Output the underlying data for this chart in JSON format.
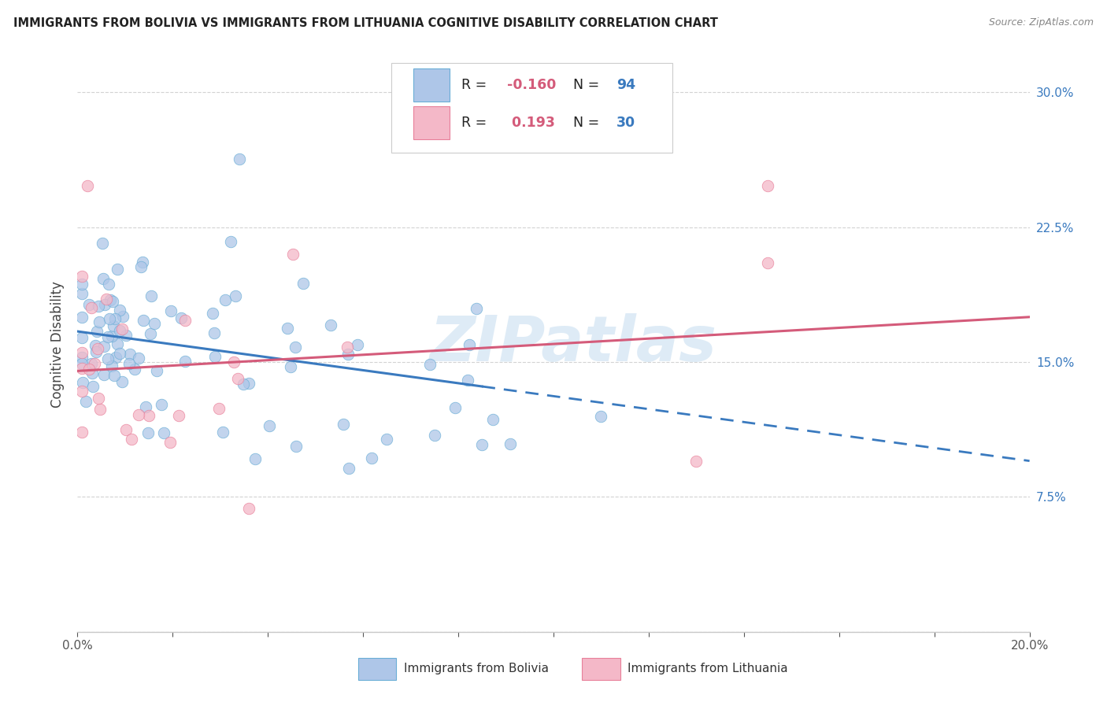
{
  "title": "IMMIGRANTS FROM BOLIVIA VS IMMIGRANTS FROM LITHUANIA COGNITIVE DISABILITY CORRELATION CHART",
  "source": "Source: ZipAtlas.com",
  "ylabel": "Cognitive Disability",
  "xlim": [
    0.0,
    0.2
  ],
  "ylim": [
    0.0,
    0.32
  ],
  "xticks": [
    0.0,
    0.02,
    0.04,
    0.06,
    0.08,
    0.1,
    0.12,
    0.14,
    0.16,
    0.18,
    0.2
  ],
  "yticks": [
    0.0,
    0.075,
    0.15,
    0.225,
    0.3
  ],
  "ytick_labels": [
    "",
    "7.5%",
    "15.0%",
    "22.5%",
    "30.0%"
  ],
  "bolivia_R": -0.16,
  "bolivia_N": 94,
  "lithuania_R": 0.193,
  "lithuania_N": 30,
  "bolivia_color": "#aec6e8",
  "bolivia_edge_color": "#6aaed6",
  "bolivia_line_color": "#3a7abf",
  "lithuania_color": "#f4b8c8",
  "lithuania_edge_color": "#e8809a",
  "lithuania_line_color": "#d45b7a",
  "watermark": "ZIPatlas",
  "watermark_color": "#c8dff0",
  "grid_color": "#c8c8c8",
  "spine_color": "#c8c8c8",
  "tick_label_color": "#555555",
  "title_color": "#222222",
  "source_color": "#888888",
  "ylabel_color": "#444444",
  "legend_text_color_dark": "#222222",
  "legend_value_color_blue": "#3a7abf",
  "legend_value_color_pink": "#d45b7a"
}
